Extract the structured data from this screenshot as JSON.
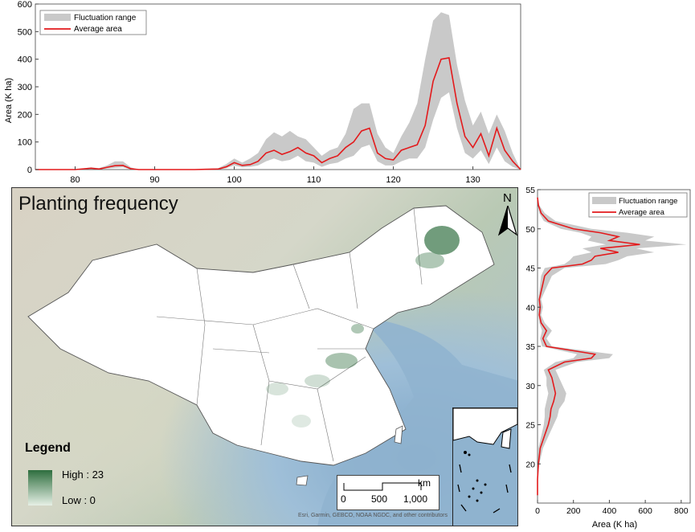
{
  "map": {
    "title": "Planting frequency",
    "legend_title": "Legend",
    "legend_high": "High : 23",
    "legend_low": "Low : 0",
    "north_label": "N",
    "scale": {
      "unit": "km",
      "ticks": [
        "0",
        "500",
        "1,000"
      ]
    },
    "attribution": "Esri, Garmin, GEBCO, NOAA NGDC, and other contributors",
    "colors": {
      "high": "#2e6e3e",
      "low": "#e6f0e6"
    }
  },
  "chart_data": [
    {
      "type": "area",
      "legend": [
        "Fluctuation range",
        "Average area"
      ],
      "legend_position": "top-left",
      "xlabel": "",
      "ylabel": "Area (K ha)",
      "xlim": [
        75,
        136
      ],
      "ylim": [
        0,
        600
      ],
      "x_ticks": [
        80,
        90,
        100,
        110,
        120,
        130
      ],
      "y_ticks": [
        0,
        100,
        200,
        300,
        400,
        500,
        600
      ],
      "colors": {
        "range": "#c9c9c9",
        "average": "#e31a1c"
      },
      "x": [
        75,
        80,
        82,
        83,
        84,
        85,
        86,
        87,
        88,
        90,
        95,
        98,
        99,
        100,
        101,
        102,
        103,
        104,
        105,
        106,
        107,
        108,
        109,
        110,
        111,
        112,
        113,
        114,
        115,
        116,
        117,
        118,
        119,
        120,
        121,
        122,
        123,
        124,
        125,
        126,
        127,
        128,
        129,
        130,
        131,
        132,
        133,
        134,
        135,
        136
      ],
      "average": [
        0,
        0,
        5,
        2,
        8,
        14,
        15,
        3,
        0,
        0,
        0,
        2,
        10,
        25,
        15,
        18,
        30,
        60,
        70,
        55,
        65,
        80,
        60,
        50,
        25,
        40,
        50,
        80,
        100,
        140,
        150,
        60,
        40,
        35,
        70,
        80,
        90,
        160,
        320,
        400,
        405,
        240,
        120,
        80,
        130,
        50,
        150,
        70,
        30,
        0
      ],
      "upper": [
        0,
        0,
        8,
        5,
        15,
        30,
        30,
        8,
        0,
        0,
        0,
        5,
        20,
        40,
        25,
        40,
        60,
        110,
        135,
        120,
        140,
        120,
        110,
        80,
        50,
        70,
        80,
        130,
        220,
        240,
        240,
        130,
        80,
        60,
        120,
        170,
        240,
        400,
        540,
        570,
        560,
        380,
        250,
        160,
        210,
        130,
        200,
        140,
        60,
        0
      ],
      "lower": [
        0,
        0,
        2,
        1,
        4,
        6,
        8,
        1,
        0,
        0,
        0,
        0,
        5,
        15,
        8,
        10,
        15,
        30,
        40,
        30,
        35,
        50,
        30,
        25,
        10,
        20,
        25,
        40,
        50,
        80,
        90,
        30,
        15,
        15,
        30,
        40,
        40,
        80,
        180,
        260,
        280,
        150,
        60,
        40,
        70,
        20,
        80,
        30,
        10,
        0
      ]
    },
    {
      "type": "area",
      "legend": [
        "Fluctuation range",
        "Average area"
      ],
      "legend_position": "top-right",
      "xlabel": "Area (K ha)",
      "ylabel": "",
      "xlim": [
        0,
        850
      ],
      "ylim": [
        15,
        55
      ],
      "x_ticks": [
        0,
        200,
        400,
        600,
        800
      ],
      "y_ticks": [
        20,
        25,
        30,
        35,
        40,
        45,
        50,
        55
      ],
      "colors": {
        "range": "#c9c9c9",
        "average": "#e31a1c"
      },
      "lat": [
        16,
        18,
        20,
        22,
        23,
        24,
        25,
        26,
        27,
        28,
        29,
        30,
        31,
        32,
        33,
        33.5,
        34,
        35,
        36,
        37,
        38,
        39,
        40,
        41,
        42,
        43,
        44,
        45,
        45.5,
        46,
        46.5,
        47,
        47.5,
        48,
        48.5,
        49,
        49.5,
        50,
        51,
        52,
        53,
        54
      ],
      "average": [
        0,
        0,
        5,
        15,
        30,
        45,
        60,
        70,
        75,
        90,
        100,
        90,
        80,
        60,
        150,
        300,
        320,
        50,
        30,
        50,
        20,
        10,
        15,
        10,
        20,
        30,
        40,
        80,
        250,
        300,
        320,
        450,
        350,
        570,
        400,
        450,
        350,
        200,
        60,
        20,
        5,
        0
      ],
      "upper": [
        0,
        0,
        10,
        30,
        50,
        70,
        90,
        110,
        120,
        150,
        160,
        140,
        120,
        100,
        220,
        400,
        420,
        80,
        50,
        80,
        40,
        20,
        30,
        20,
        40,
        60,
        80,
        150,
        380,
        450,
        500,
        650,
        550,
        830,
        600,
        650,
        500,
        300,
        100,
        40,
        10,
        0
      ],
      "lower": [
        0,
        0,
        2,
        5,
        15,
        25,
        35,
        40,
        40,
        50,
        60,
        50,
        50,
        35,
        100,
        200,
        220,
        25,
        15,
        25,
        10,
        5,
        5,
        5,
        10,
        15,
        20,
        40,
        150,
        180,
        200,
        300,
        250,
        380,
        280,
        300,
        240,
        130,
        35,
        10,
        2,
        0
      ]
    }
  ]
}
